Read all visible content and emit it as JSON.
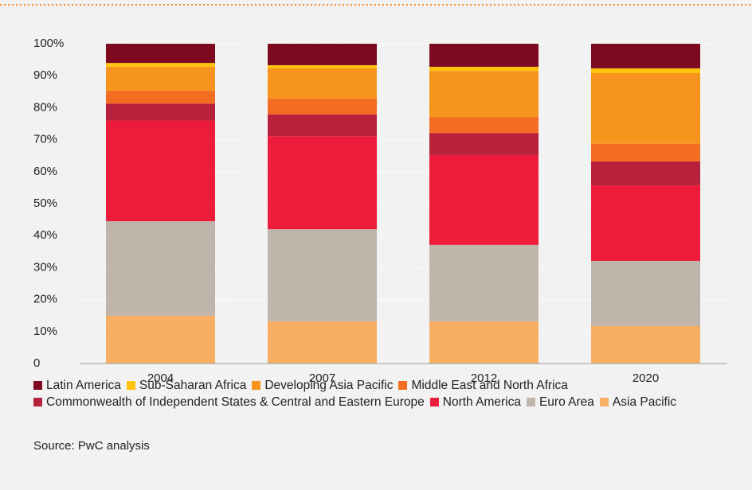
{
  "chart_data": {
    "type": "stacked_bar",
    "categories": [
      "2004",
      "2007",
      "2012",
      "2020"
    ],
    "series": [
      {
        "name": "Latin America",
        "color": "#7d0a1e",
        "values": [
          6.0,
          6.7,
          7.2,
          7.7
        ]
      },
      {
        "name": "Sub-Saharan Africa",
        "color": "#ffc20e",
        "values": [
          1.2,
          1.0,
          1.3,
          1.5
        ]
      },
      {
        "name": "Developing Asia Pacific",
        "color": "#f7941d",
        "values": [
          7.5,
          9.5,
          14.4,
          22.1
        ]
      },
      {
        "name": "Middle East and North Africa",
        "color": "#f26d21",
        "values": [
          4.0,
          4.9,
          5.0,
          5.5
        ]
      },
      {
        "name": "Commonwealth of Independent States & Central and Eastern Europe",
        "color": "#b8213c",
        "values": [
          5.3,
          6.8,
          6.9,
          7.5
        ]
      },
      {
        "name": "North America",
        "color": "#ee1c3b",
        "values": [
          31.5,
          29.1,
          28.1,
          23.6
        ]
      },
      {
        "name": "Euro Area",
        "color": "#bfb5ab",
        "values": [
          29.5,
          28.8,
          23.9,
          20.4
        ]
      },
      {
        "name": "Asia Pacific",
        "color": "#f8ae63",
        "values": [
          15.0,
          13.2,
          13.2,
          11.7
        ]
      }
    ],
    "ylim": [
      0,
      100
    ],
    "yticks": [
      0,
      {
        "value": 10,
        "label": "10%"
      },
      {
        "value": 20,
        "label": "20%"
      },
      {
        "value": 30,
        "label": "30%"
      },
      {
        "value": 40,
        "label": "40%"
      },
      {
        "value": 50,
        "label": "50%"
      },
      {
        "value": 60,
        "label": "60%"
      },
      {
        "value": 70,
        "label": "70%"
      },
      {
        "value": 80,
        "label": "80%"
      },
      {
        "value": 90,
        "label": "90%"
      },
      {
        "value": 100,
        "label": "100%"
      }
    ],
    "grid": true,
    "source": "Source: PwC analysis"
  }
}
